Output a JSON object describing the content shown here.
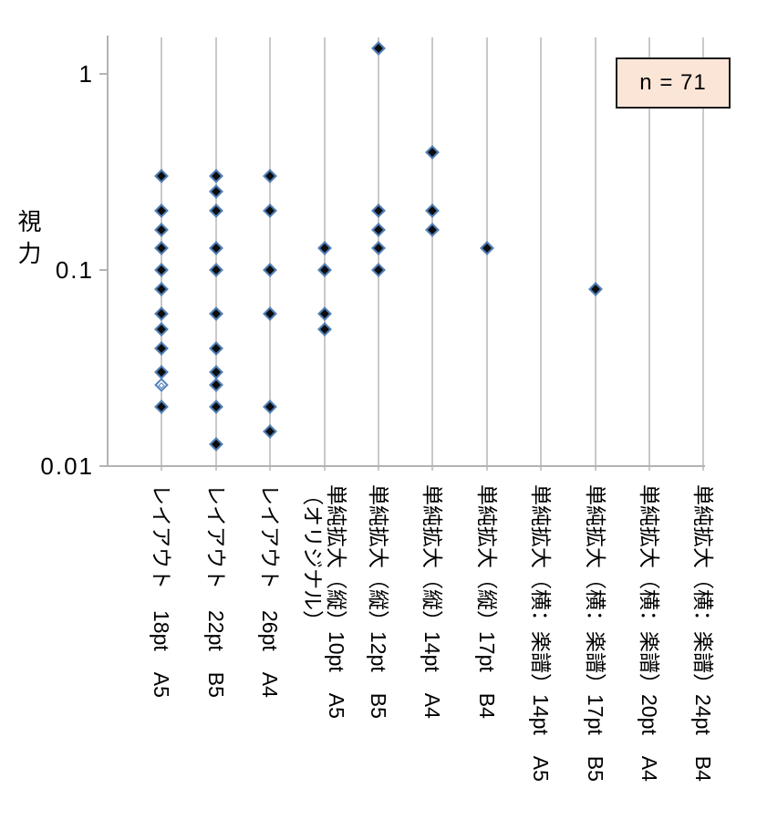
{
  "annotation": {
    "text": "n = 71",
    "fill_color": "#fbe5d6",
    "border_color": "#000000"
  },
  "colors": {
    "marker_fill": "#0d0d0d",
    "marker_border": "#4f81bd",
    "gridline": "#c9c9c9",
    "axis": "#b3b3b3",
    "background": "#ffffff"
  },
  "chart_data": {
    "type": "scatter",
    "title": "",
    "ylabel": "視力",
    "xlabel": "",
    "y_scale": "log",
    "ylim": [
      0.01,
      1.5
    ],
    "y_tick_labels": [
      "1",
      "0.1",
      "0.01"
    ],
    "y_tick_values": [
      1,
      0.1,
      0.01
    ],
    "grid": "vertical lines at each category",
    "legend": "none",
    "annotation": "n = 71",
    "marker": {
      "shape": "diamond",
      "fill": "black",
      "border": "blue",
      "open_variant": "white fill"
    },
    "categories": [
      {
        "label": "レイアウト　18pt　A5",
        "values": [
          0.3,
          0.2,
          0.16,
          0.13,
          0.1,
          0.08,
          0.06,
          0.05,
          0.04,
          0.03,
          0.02
        ],
        "open_values": [
          0.026
        ]
      },
      {
        "label": "レイアウト　22pt　B5",
        "values": [
          0.3,
          0.25,
          0.2,
          0.13,
          0.1,
          0.06,
          0.04,
          0.03,
          0.026,
          0.02,
          0.013
        ],
        "open_values": []
      },
      {
        "label": "レイアウト　26pt　A4",
        "values": [
          0.3,
          0.2,
          0.1,
          0.06,
          0.02,
          0.015
        ],
        "open_values": []
      },
      {
        "label": "単純拡大（縦）10pt　A5",
        "label_line2": "（オリジナル）",
        "values": [
          0.13,
          0.1,
          0.06,
          0.05
        ],
        "open_values": []
      },
      {
        "label": "単純拡大（縦）12pt　B5",
        "values": [
          1.35,
          0.2,
          0.16,
          0.13,
          0.1
        ],
        "open_values": []
      },
      {
        "label": "単純拡大（縦）14pt　A4",
        "values": [
          0.4,
          0.2,
          0.16
        ],
        "open_values": []
      },
      {
        "label": "単純拡大（縦）17pt　B4",
        "values": [
          0.13
        ],
        "open_values": []
      },
      {
        "label": "単純拡大（横：楽譜）14pt　A5",
        "values": [],
        "open_values": []
      },
      {
        "label": "単純拡大（横：楽譜）17pt　B5",
        "values": [
          0.08
        ],
        "open_values": []
      },
      {
        "label": "単純拡大（横：楽譜）20pt　A4",
        "values": [],
        "open_values": []
      },
      {
        "label": "単純拡大（横：楽譜）24pt　B4",
        "values": [],
        "open_values": []
      }
    ]
  }
}
